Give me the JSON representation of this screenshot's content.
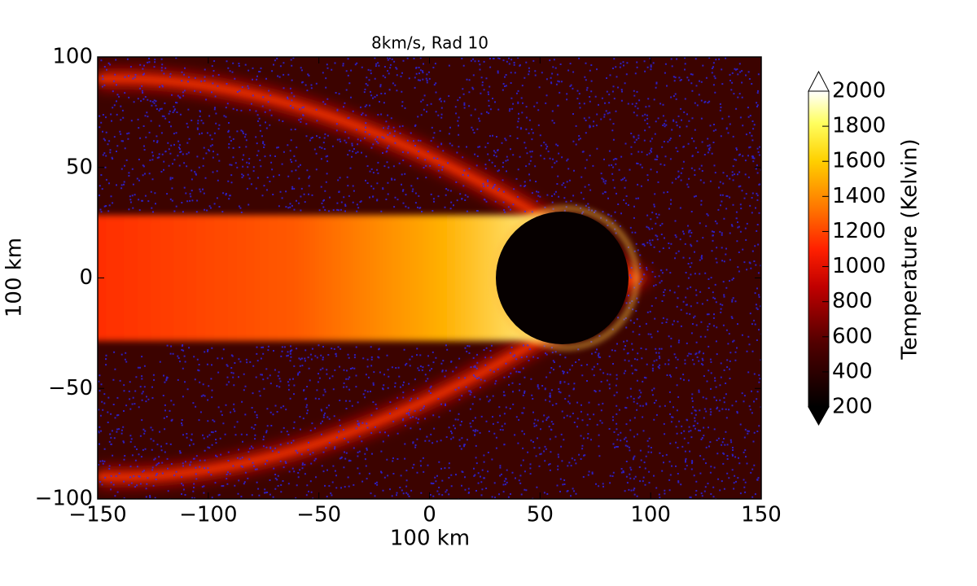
{
  "chart_data": {
    "type": "heatmap",
    "title": "8km/s, Rad 10",
    "xlabel": "100 km",
    "ylabel": "100 km",
    "xlim": [
      -150,
      150
    ],
    "ylim": [
      -100,
      100
    ],
    "xticks": [
      {
        "value": -150,
        "label": "−150"
      },
      {
        "value": -100,
        "label": "−100"
      },
      {
        "value": -50,
        "label": "−50"
      },
      0,
      50,
      100,
      150
    ],
    "yticks": [
      {
        "value": -100,
        "label": "−100"
      },
      {
        "value": -50,
        "label": "−50"
      },
      0,
      50,
      100
    ],
    "obstacle": {
      "center": [
        60,
        0
      ],
      "radius": 30
    },
    "colorbar": {
      "label": "Temperature (Kelvin)",
      "lim": [
        200,
        2000
      ],
      "ticks": [
        200,
        400,
        600,
        800,
        1000,
        1200,
        1400,
        1600,
        1800,
        2000
      ]
    }
  }
}
